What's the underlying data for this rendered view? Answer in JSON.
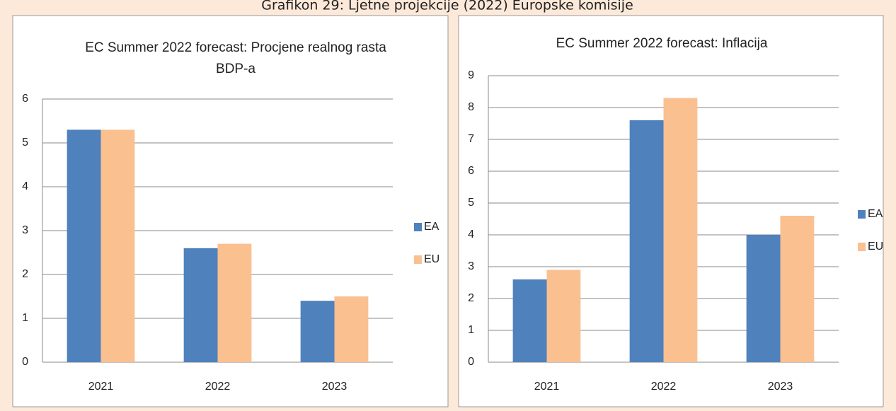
{
  "caption": "Grafikon 29: Ljetne projekcije (2022) Europske komisije",
  "chart_data": [
    {
      "type": "bar",
      "title": [
        "EC Summer 2022 forecast: Procjene realnog rasta",
        "BDP-a"
      ],
      "categories": [
        "2021",
        "2022",
        "2023"
      ],
      "series": [
        {
          "name": "EA",
          "color": "#4f81bd",
          "values": [
            5.3,
            2.6,
            1.4
          ]
        },
        {
          "name": "EU",
          "color": "#fac090",
          "values": [
            5.3,
            2.7,
            1.5
          ]
        }
      ],
      "ylim": [
        0,
        6
      ],
      "yticks": [
        0,
        1,
        2,
        3,
        4,
        5,
        6
      ],
      "grid": true,
      "legend": "right"
    },
    {
      "type": "bar",
      "title": [
        "EC Summer 2022 forecast: Inflacija"
      ],
      "categories": [
        "2021",
        "2022",
        "2023"
      ],
      "series": [
        {
          "name": "EA",
          "color": "#4f81bd",
          "values": [
            2.6,
            7.6,
            4.0
          ]
        },
        {
          "name": "EU",
          "color": "#fac090",
          "values": [
            2.9,
            8.3,
            4.6
          ]
        }
      ],
      "ylim": [
        0,
        9
      ],
      "yticks": [
        0,
        1,
        2,
        3,
        4,
        5,
        6,
        7,
        8,
        9
      ],
      "grid": true,
      "legend": "right"
    }
  ]
}
